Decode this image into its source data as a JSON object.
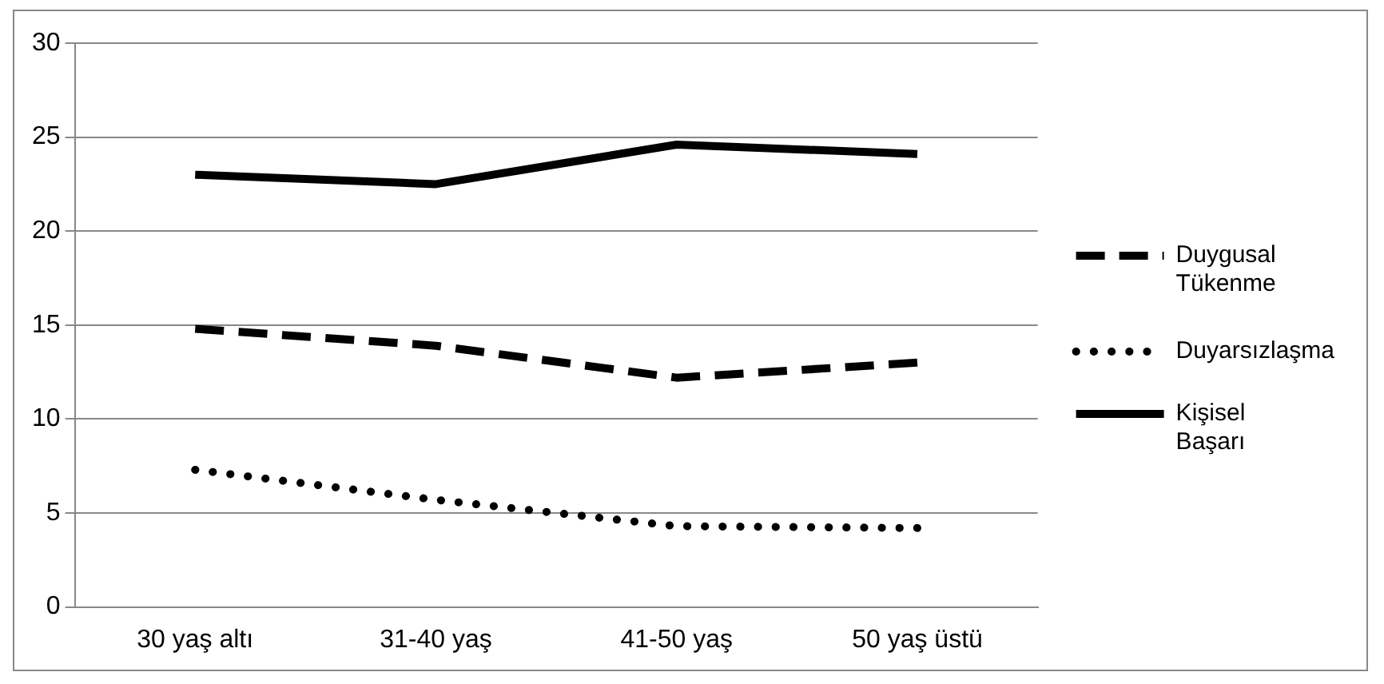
{
  "chart_data": {
    "type": "line",
    "categories": [
      "30 yaş altı",
      "31-40 yaş",
      "41-50 yaş",
      "50 yaş üstü"
    ],
    "series": [
      {
        "name": "Duygusal Tükenme",
        "color": "#000000",
        "line_style": "dashed",
        "values": [
          14.8,
          13.9,
          12.2,
          13.0
        ]
      },
      {
        "name": "Duyarsızlaşma",
        "color": "#000000",
        "line_style": "dotted",
        "values": [
          7.3,
          5.7,
          4.3,
          4.2
        ]
      },
      {
        "name": "Kişisel Başarı",
        "color": "#000000",
        "line_style": "solid",
        "values": [
          23.0,
          22.5,
          24.6,
          24.1
        ]
      }
    ],
    "ylim": [
      0,
      30
    ],
    "yticks": [
      0,
      5,
      10,
      15,
      20,
      25,
      30
    ],
    "grid": "y",
    "legend": "right",
    "marker": "none"
  }
}
